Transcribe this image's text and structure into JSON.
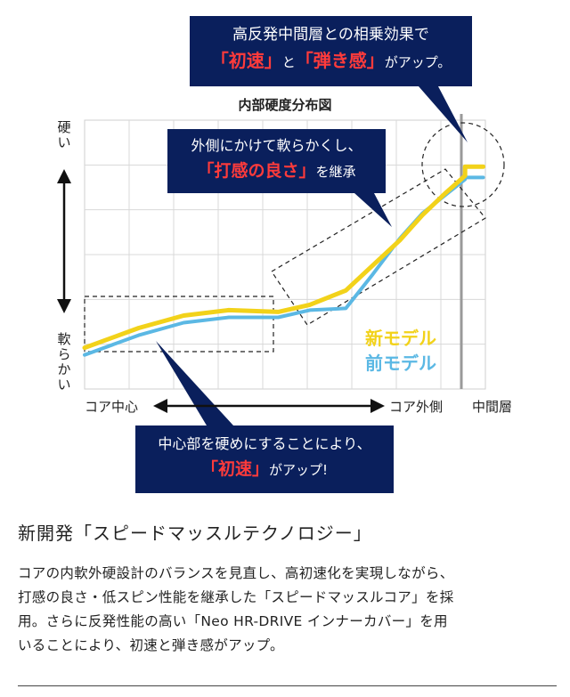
{
  "chart_data": {
    "type": "line",
    "title": "内部硬度分布図",
    "y_axis": {
      "top_label": "硬い",
      "bottom_label": "軟らかい"
    },
    "x_axis": {
      "left_label": "コア中心",
      "core_outer_label": "コア外側",
      "right_label": "中間層"
    },
    "grid": true,
    "legend_placement": "bottom-right",
    "series": [
      {
        "name": "新モデル",
        "color": "#f2d21a",
        "x": [
          0,
          1.2,
          2.2,
          3.2,
          4.3,
          5.0,
          5.8,
          6.4,
          7.0,
          7.5,
          8.0,
          8.45,
          8.45,
          8.85
        ],
        "y": [
          1.15,
          1.7,
          2.05,
          2.2,
          2.15,
          2.35,
          2.75,
          3.45,
          4.15,
          4.85,
          5.45,
          5.95,
          6.2,
          6.2
        ]
      },
      {
        "name": "前モデル",
        "color": "#5bb8e4",
        "x": [
          0,
          1.2,
          2.2,
          3.2,
          4.3,
          5.0,
          5.8,
          6.4,
          7.0,
          7.5,
          8.0,
          8.45,
          8.45,
          8.85
        ],
        "y": [
          0.95,
          1.5,
          1.85,
          2.0,
          2.0,
          2.2,
          2.25,
          3.2,
          4.2,
          4.9,
          5.4,
          5.85,
          5.9,
          5.9
        ]
      }
    ],
    "xlim": [
      0,
      8.9
    ],
    "ylim": [
      0,
      7.5
    ]
  },
  "callouts": {
    "top": {
      "line1": "高反発中間層との相乗効果で",
      "red1": "「初速」",
      "mid": "と",
      "red2": "「弾き感」",
      "tail": "がアップ。"
    },
    "middle": {
      "line1": "外側にかけて軟らかくし、",
      "red1": "「打感の良さ」",
      "tail": "を継承"
    },
    "bottom": {
      "line1": "中心部を硬めにすることにより、",
      "red1": "「初速」",
      "tail": "がアップ!"
    }
  },
  "section": {
    "title": "新開発「スピードマッスルテクノロジー」",
    "body_lines": [
      "コアの内軟外硬設計のバランスを見直し、高初速化を実現しながら、",
      "打感の良さ・低スピン性能を継承した「スピードマッスルコア」を採",
      "用。さらに反発性能の高い「Neo HR-DRIVE インナーカバー」を用",
      "いることにより、初速と弾き感がアップ。"
    ]
  }
}
